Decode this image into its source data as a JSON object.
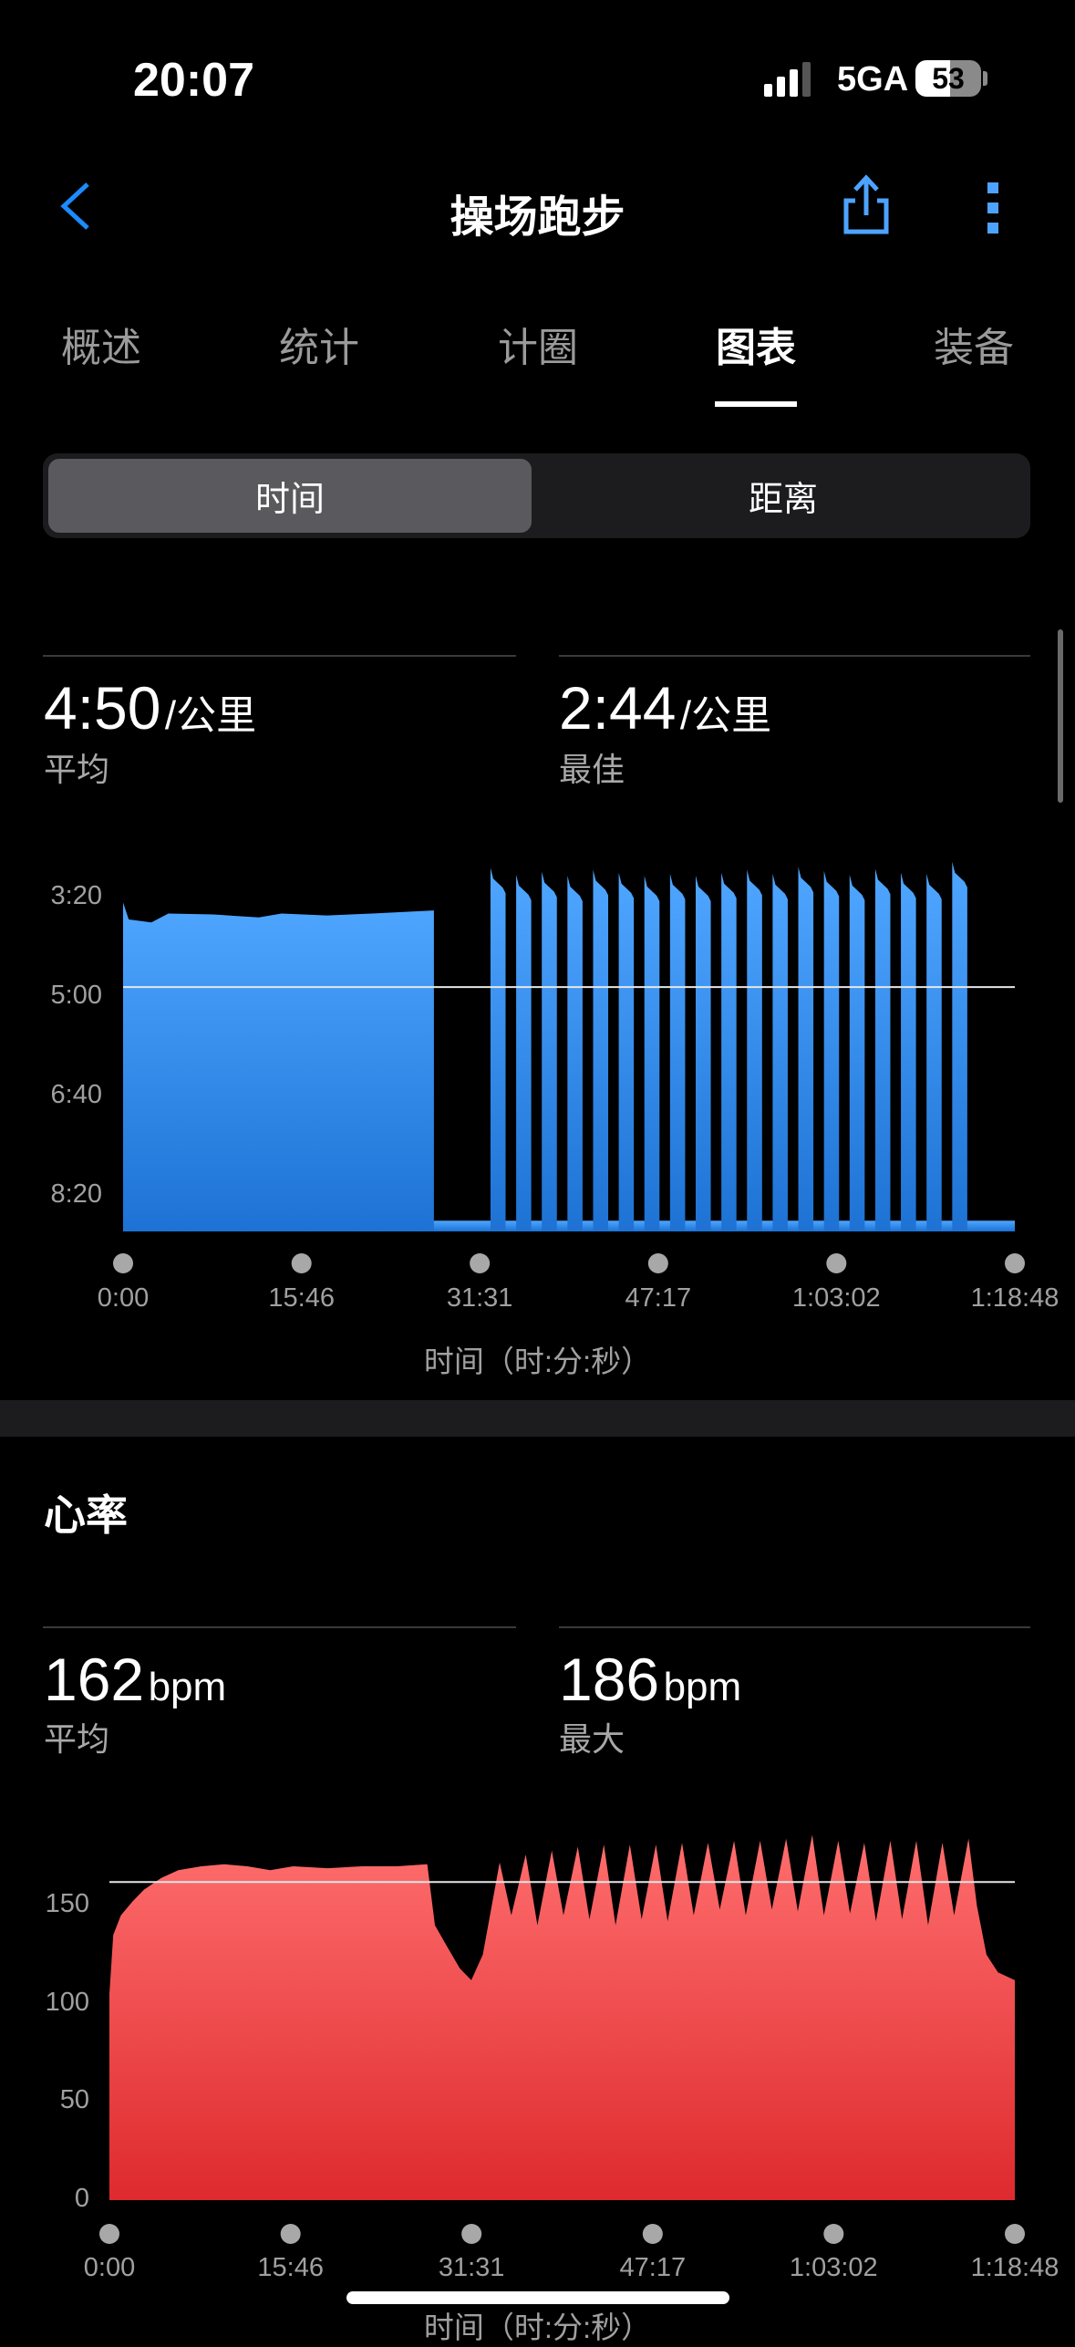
{
  "status_bar": {
    "time": "20:07",
    "network": "5GA",
    "battery": "53"
  },
  "header": {
    "title": "操场跑步",
    "back_icon": "chevron-left-icon",
    "share_icon": "share-icon",
    "more_icon": "more-vertical-icon",
    "accent": "#1a8cff"
  },
  "tabs": [
    {
      "label": "概述"
    },
    {
      "label": "统计"
    },
    {
      "label": "计圈"
    },
    {
      "label": "图表",
      "active": true
    },
    {
      "label": "装备"
    }
  ],
  "segment": {
    "options": [
      "时间",
      "距离"
    ],
    "selected": "时间"
  },
  "pace": {
    "avg_value": "4:50",
    "avg_unit": "/公里",
    "avg_label": "平均",
    "best_value": "2:44",
    "best_unit": "/公里",
    "best_label": "最佳",
    "color": "#4da3ff"
  },
  "heart_rate": {
    "title": "心率",
    "avg_value": "162",
    "avg_unit": "bpm",
    "avg_label": "平均",
    "max_value": "186",
    "max_unit": "bpm",
    "max_label": "最大",
    "color": "#ff6b6b"
  },
  "chart_data": [
    {
      "type": "area",
      "ylabel": "",
      "xlabel": "时间（时:分:秒）",
      "y_inverted": true,
      "y_ticks": [
        "3:20",
        "5:00",
        "6:40",
        "8:20"
      ],
      "x_ticks": [
        "0:00",
        "15:46",
        "31:31",
        "47:17",
        "1:03:02",
        "1:18:48"
      ],
      "xlim": [
        "0:00",
        "1:18:48"
      ],
      "reference_line": "4:50",
      "steady_segment": {
        "points": [
          [
            "0:00",
            "3:25"
          ],
          [
            "0:30",
            "3:42"
          ],
          [
            "2:30",
            "3:45"
          ],
          [
            "4:00",
            "3:36"
          ],
          [
            "8:00",
            "3:37"
          ],
          [
            "12:00",
            "3:40"
          ],
          [
            "14:00",
            "3:36"
          ],
          [
            "18:00",
            "3:38"
          ],
          [
            "22:00",
            "3:36"
          ],
          [
            "27:28",
            "3:33"
          ]
        ]
      },
      "recovery_pace": "8:45",
      "intervals": [
        {
          "start": "32:28",
          "end": "33:48",
          "pace": "2:50"
        },
        {
          "start": "34:44",
          "end": "36:04",
          "pace": "2:57"
        },
        {
          "start": "37:00",
          "end": "38:20",
          "pace": "2:54"
        },
        {
          "start": "39:16",
          "end": "40:36",
          "pace": "2:58"
        },
        {
          "start": "41:32",
          "end": "42:52",
          "pace": "2:52"
        },
        {
          "start": "43:48",
          "end": "45:08",
          "pace": "2:55"
        },
        {
          "start": "46:04",
          "end": "47:24",
          "pace": "2:58"
        },
        {
          "start": "48:20",
          "end": "49:40",
          "pace": "2:56"
        },
        {
          "start": "50:36",
          "end": "51:56",
          "pace": "2:58"
        },
        {
          "start": "52:52",
          "end": "54:12",
          "pace": "2:55"
        },
        {
          "start": "55:08",
          "end": "56:28",
          "pace": "2:52"
        },
        {
          "start": "57:24",
          "end": "58:44",
          "pace": "2:56"
        },
        {
          "start": "59:40",
          "end": "1:01:00",
          "pace": "2:49"
        },
        {
          "start": "1:01:56",
          "end": "1:03:16",
          "pace": "2:53"
        },
        {
          "start": "1:04:12",
          "end": "1:05:32",
          "pace": "2:57"
        },
        {
          "start": "1:06:28",
          "end": "1:07:48",
          "pace": "2:51"
        },
        {
          "start": "1:08:44",
          "end": "1:10:04",
          "pace": "2:55"
        },
        {
          "start": "1:11:00",
          "end": "1:12:20",
          "pace": "2:56"
        },
        {
          "start": "1:13:16",
          "end": "1:14:36",
          "pace": "2:44"
        }
      ]
    },
    {
      "type": "area",
      "xlabel": "时间（时:分:秒）",
      "y_ticks": [
        "150",
        "100",
        "50",
        "0"
      ],
      "ylim": [
        0,
        186
      ],
      "x_ticks": [
        "0:00",
        "15:46",
        "31:31",
        "47:17",
        "1:03:02",
        "1:18:48"
      ],
      "xlim": [
        "0:00",
        "1:18:48"
      ],
      "reference_line": 162,
      "points": [
        [
          "0:00",
          105
        ],
        [
          "0:20",
          135
        ],
        [
          "1:00",
          145
        ],
        [
          "2:00",
          152
        ],
        [
          "3:00",
          158
        ],
        [
          "4:30",
          164
        ],
        [
          "6:00",
          168
        ],
        [
          "8:00",
          170
        ],
        [
          "10:00",
          171
        ],
        [
          "12:00",
          170
        ],
        [
          "14:00",
          168
        ],
        [
          "16:00",
          170
        ],
        [
          "19:00",
          169
        ],
        [
          "22:00",
          170
        ],
        [
          "25:00",
          170
        ],
        [
          "27:40",
          171
        ],
        [
          "28:20",
          140
        ],
        [
          "29:30",
          128
        ],
        [
          "30:30",
          118
        ],
        [
          "31:30",
          112
        ],
        [
          "32:30",
          125
        ],
        [
          "33:58",
          172
        ],
        [
          "34:59",
          145
        ],
        [
          "36:14",
          176
        ],
        [
          "37:15",
          140
        ],
        [
          "38:30",
          178
        ],
        [
          "39:31",
          145
        ],
        [
          "40:46",
          180
        ],
        [
          "41:47",
          143
        ],
        [
          "43:02",
          181
        ],
        [
          "44:03",
          140
        ],
        [
          "45:18",
          181
        ],
        [
          "46:19",
          143
        ],
        [
          "47:34",
          181
        ],
        [
          "48:35",
          142
        ],
        [
          "49:50",
          182
        ],
        [
          "50:51",
          145
        ],
        [
          "52:06",
          182
        ],
        [
          "53:07",
          148
        ],
        [
          "54:22",
          183
        ],
        [
          "55:23",
          145
        ],
        [
          "56:38",
          183
        ],
        [
          "57:39",
          148
        ],
        [
          "58:54",
          184
        ],
        [
          "59:55",
          147
        ],
        [
          "1:01:10",
          186
        ],
        [
          "1:02:11",
          145
        ],
        [
          "1:03:26",
          183
        ],
        [
          "1:04:27",
          146
        ],
        [
          "1:05:42",
          182
        ],
        [
          "1:06:43",
          142
        ],
        [
          "1:07:58",
          183
        ],
        [
          "1:08:59",
          143
        ],
        [
          "1:10:14",
          183
        ],
        [
          "1:11:15",
          140
        ],
        [
          "1:12:30",
          182
        ],
        [
          "1:13:31",
          145
        ],
        [
          "1:14:46",
          184
        ],
        [
          "1:15:30",
          150
        ],
        [
          "1:16:20",
          125
        ],
        [
          "1:17:20",
          116
        ],
        [
          "1:18:48",
          112
        ]
      ]
    }
  ]
}
